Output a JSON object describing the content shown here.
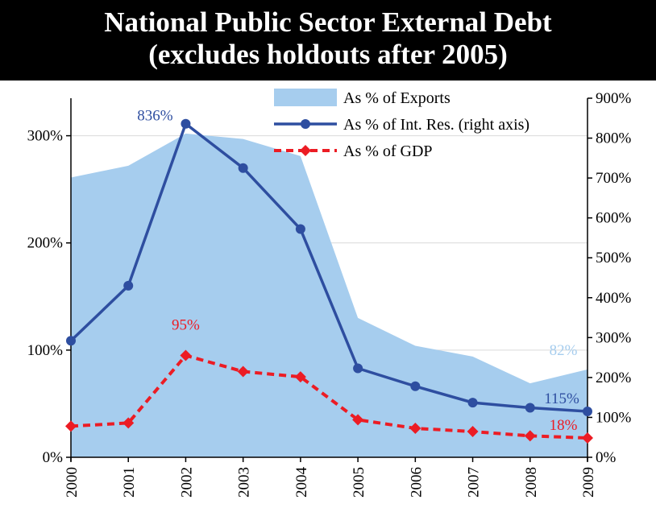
{
  "chart_data": {
    "type": "line",
    "title_line1": "National Public Sector External Debt",
    "title_line2": "(excludes holdouts after 2005)",
    "categories": [
      "2000",
      "2001",
      "2002",
      "2003",
      "2004",
      "2005",
      "2006",
      "2007",
      "2008",
      "2009"
    ],
    "left_axis": {
      "min": 0,
      "max": 335,
      "ticks": [
        0,
        100,
        200,
        300
      ],
      "tick_labels": [
        "0%",
        "100%",
        "200%",
        "300%"
      ]
    },
    "right_axis": {
      "min": 0,
      "max": 900,
      "ticks": [
        0,
        100,
        200,
        300,
        400,
        500,
        600,
        700,
        800,
        900
      ],
      "tick_labels": [
        "0%",
        "100%",
        "200%",
        "300%",
        "400%",
        "500%",
        "600%",
        "700%",
        "800%",
        "900%"
      ]
    },
    "grid": "horizontal",
    "legend_position": "top-right",
    "colors": {
      "exports": "#a6cdee",
      "reserves": "#2e4ea0",
      "gdp": "#ec1c24",
      "exports_label": "#a6cdee"
    },
    "series": [
      {
        "name": "As % of Exports",
        "kind": "area",
        "axis": "left",
        "values": [
          261,
          272,
          302,
          297,
          281,
          130,
          104,
          94,
          69,
          82
        ]
      },
      {
        "name": "As % of Int. Res. (right axis)",
        "kind": "line",
        "axis": "right",
        "values": [
          292,
          430,
          836,
          725,
          572,
          223,
          178,
          137,
          124,
          115
        ]
      },
      {
        "name": "As % of GDP",
        "kind": "dashed-line",
        "axis": "left",
        "values": [
          29,
          32,
          95,
          80,
          75,
          35,
          27,
          24,
          20,
          18
        ]
      }
    ],
    "annotations": [
      {
        "series": 1,
        "index": 2,
        "text": "836%"
      },
      {
        "series": 2,
        "index": 2,
        "text": "95%"
      },
      {
        "series": 0,
        "index": 9,
        "text": "82%"
      },
      {
        "series": 1,
        "index": 9,
        "text": "115%"
      },
      {
        "series": 2,
        "index": 9,
        "text": "18%"
      }
    ]
  }
}
